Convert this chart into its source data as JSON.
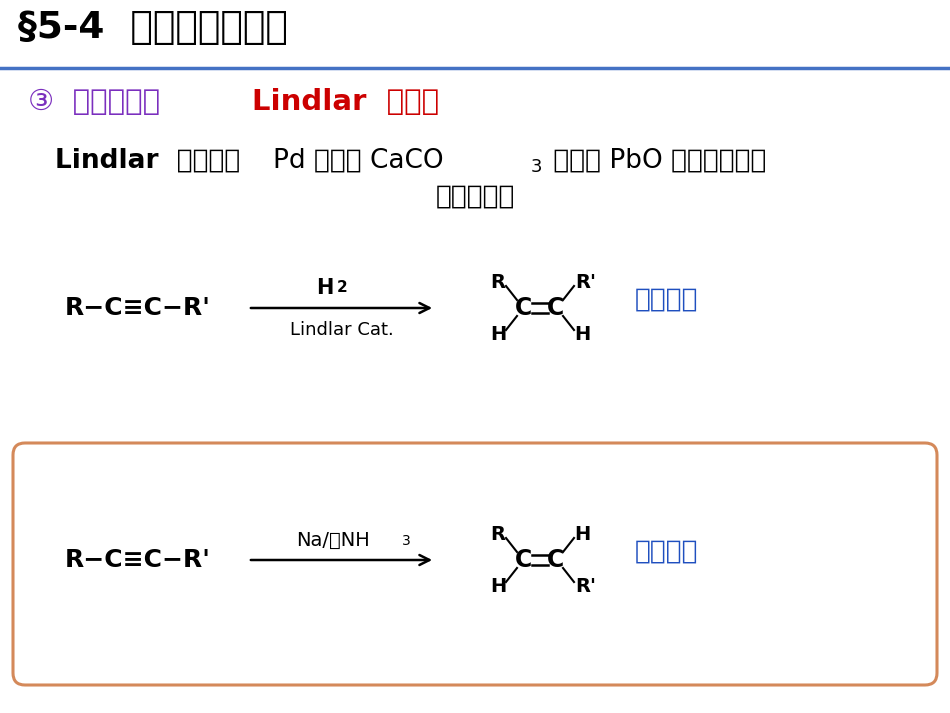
{
  "title": "§5-4  岂烃的化学性质",
  "title_color": "#000000",
  "subtitle_part1": "③  生成烯烃：  ",
  "subtitle_part2": "Lindlar  催化剂",
  "subtitle_color1": "#7B2FBE",
  "subtitle_color2": "#CC0000",
  "desc_bold": "Lindlar  催化剂：",
  "desc_normal1": "Pd 附着在 CaCO",
  "desc_sub3": "3",
  "desc_normal2": " 及小量 PbO 上，使催化剂",
  "desc_line2": "活性降低。",
  "bg_color": "#FFFFFF",
  "line_color": "#4472C4",
  "orange_box_color": "#D4895A",
  "blue_label1": "顺式为主",
  "blue_label2": "反式为主",
  "blue_color": "#1F4FBF",
  "rxn1_above": "H",
  "rxn1_sub": "2",
  "rxn1_below": "Lindlar Cat.",
  "rxn2_above": "Na/液NH",
  "rxn2_sub": "3"
}
